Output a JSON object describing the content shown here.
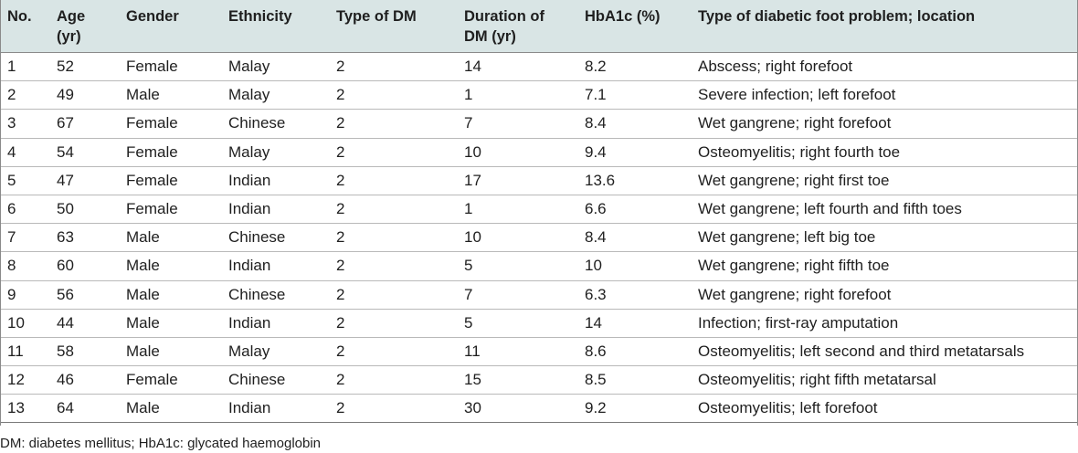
{
  "table": {
    "headers": [
      "No.",
      "Age (yr)",
      "Gender",
      "Ethnicity",
      "Type of DM",
      "Duration of DM (yr)",
      "HbA1c (%)",
      "Type of diabetic foot problem; location"
    ],
    "header_lines": [
      [
        "No.",
        ""
      ],
      [
        "Age",
        "(yr)"
      ],
      [
        "Gender",
        ""
      ],
      [
        "Ethnicity",
        ""
      ],
      [
        "Type of DM",
        ""
      ],
      [
        "Duration of",
        "DM (yr)"
      ],
      [
        "HbA1c (%)",
        ""
      ],
      [
        "Type of diabetic foot problem; location",
        ""
      ]
    ],
    "rows": [
      [
        "1",
        "52",
        "Female",
        "Malay",
        "2",
        "14",
        "8.2",
        "Abscess; right forefoot"
      ],
      [
        "2",
        "49",
        "Male",
        "Malay",
        "2",
        "1",
        "7.1",
        "Severe infection; left forefoot"
      ],
      [
        "3",
        "67",
        "Female",
        "Chinese",
        "2",
        "7",
        "8.4",
        "Wet gangrene; right forefoot"
      ],
      [
        "4",
        "54",
        "Female",
        "Malay",
        "2",
        "10",
        "9.4",
        "Osteomyelitis; right fourth toe"
      ],
      [
        "5",
        "47",
        "Female",
        "Indian",
        "2",
        "17",
        "13.6",
        "Wet gangrene; right first toe"
      ],
      [
        "6",
        "50",
        "Female",
        "Indian",
        "2",
        "1",
        "6.6",
        "Wet gangrene; left fourth and fifth toes"
      ],
      [
        "7",
        "63",
        "Male",
        "Chinese",
        "2",
        "10",
        "8.4",
        "Wet gangrene; left big toe"
      ],
      [
        "8",
        "60",
        "Male",
        "Indian",
        "2",
        "5",
        "10",
        "Wet gangrene; right fifth toe"
      ],
      [
        "9",
        "56",
        "Male",
        "Chinese",
        "2",
        "7",
        "6.3",
        "Wet gangrene; right forefoot"
      ],
      [
        "10",
        "44",
        "Male",
        "Indian",
        "2",
        "5",
        "14",
        "Infection; first-ray amputation"
      ],
      [
        "11",
        "58",
        "Male",
        "Malay",
        "2",
        "11",
        "8.6",
        "Osteomyelitis; left second and third metatarsals"
      ],
      [
        "12",
        "46",
        "Female",
        "Chinese",
        "2",
        "15",
        "8.5",
        "Osteomyelitis; right fifth metatarsal"
      ],
      [
        "13",
        "64",
        "Male",
        "Indian",
        "2",
        "30",
        "9.2",
        "Osteomyelitis; left forefoot"
      ]
    ]
  },
  "footnote": "DM: diabetes mellitus; HbA1c: glycated haemoglobin",
  "colors": {
    "header_background": "#d9e5e5",
    "text": "#1f1f1f",
    "row_rule": "#b9b9b9"
  }
}
